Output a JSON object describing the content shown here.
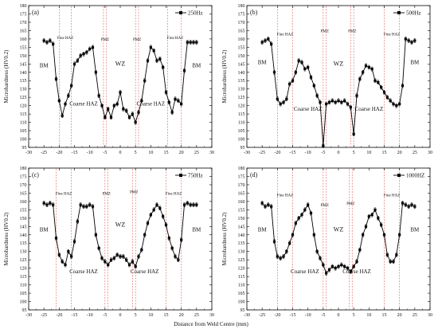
{
  "chart_data": [
    {
      "type": "line",
      "panel_label": "(a)",
      "legend": "250Hz",
      "ylabel": "Microhardness (HV0.2)",
      "xlabel": "",
      "xlim": [
        -30,
        30
      ],
      "ylim": [
        95,
        180
      ],
      "xticks": [
        "-30",
        "-25",
        "-20",
        "-15",
        "-10",
        "-5",
        "0",
        "5",
        "10",
        "15",
        "20",
        "25",
        "30"
      ],
      "yticks": [
        "95",
        "100",
        "105",
        "110",
        "115",
        "120",
        "125",
        "130",
        "135",
        "140",
        "145",
        "150",
        "155",
        "160",
        "165",
        "170",
        "175",
        "180"
      ],
      "zone_lines": [
        -20,
        -16,
        -5.5,
        -4.5,
        5,
        6,
        15.5,
        20
      ],
      "annotations": [
        {
          "text": "Fine HAZ",
          "x": -18,
          "y": 160
        },
        {
          "text": "PMZ",
          "x": -5,
          "y": 159
        },
        {
          "text": "PMZ",
          "x": 5.5,
          "y": 159
        },
        {
          "text": "Fine HAZ",
          "x": 18,
          "y": 160
        },
        {
          "text": "BM",
          "x": -25,
          "y": 143
        },
        {
          "text": "WZ",
          "x": 0,
          "y": 144
        },
        {
          "text": "BM",
          "x": 25,
          "y": 143
        },
        {
          "text": "Coarse HAZ",
          "x": -12,
          "y": 120
        },
        {
          "text": "Coarse HAZ",
          "x": 10,
          "y": 120
        }
      ],
      "x": [
        -25,
        -24,
        -23,
        -22,
        -21,
        -20,
        -19,
        -18,
        -17,
        -16,
        -15,
        -14,
        -13,
        -12,
        -11,
        -10,
        -9,
        -8,
        -7,
        -6,
        -5,
        -4,
        -3,
        -2,
        -1,
        0,
        1,
        2,
        3,
        4,
        5,
        6,
        7,
        8,
        9,
        10,
        11,
        12,
        13,
        14,
        15,
        16,
        17,
        18,
        19,
        20,
        21,
        22,
        23,
        24,
        25
      ],
      "values": [
        159,
        158,
        159,
        157,
        136,
        123,
        114,
        121,
        126,
        132,
        145,
        147,
        150,
        151,
        152,
        154,
        155,
        140,
        126,
        120,
        113,
        118,
        113,
        120,
        121,
        128,
        118,
        117,
        113,
        115,
        110,
        116,
        123,
        135,
        147,
        155,
        153,
        147,
        148,
        143,
        128,
        122,
        116,
        124,
        123,
        121,
        141,
        158,
        158,
        158,
        158
      ]
    },
    {
      "type": "line",
      "panel_label": "(b)",
      "legend": "500Hz",
      "ylabel": "Microhardness (HV0.2)",
      "xlabel": "",
      "xlim": [
        -30,
        30
      ],
      "ylim": [
        95,
        180
      ],
      "xticks": [
        "-30",
        "-25",
        "-20",
        "-15",
        "-10",
        "-5",
        "0",
        "5",
        "10",
        "15",
        "20",
        "25",
        "30"
      ],
      "yticks": [
        "95",
        "100",
        "105",
        "110",
        "115",
        "120",
        "125",
        "130",
        "135",
        "140",
        "145",
        "150",
        "155",
        "160",
        "165",
        "170",
        "175",
        "180"
      ],
      "zone_lines": [
        -20,
        -15,
        -5,
        -4,
        4,
        5,
        15,
        20
      ],
      "annotations": [
        {
          "text": "Fine HAZ",
          "x": -17.5,
          "y": 162
        },
        {
          "text": "PMZ",
          "x": -4.5,
          "y": 164
        },
        {
          "text": "PMZ",
          "x": 4.5,
          "y": 164
        },
        {
          "text": "Fine HAZ",
          "x": 17.5,
          "y": 162
        },
        {
          "text": "BM",
          "x": -25,
          "y": 145
        },
        {
          "text": "WZ",
          "x": 0,
          "y": 144
        },
        {
          "text": "BM",
          "x": 25,
          "y": 145
        },
        {
          "text": "Coarse HAZ",
          "x": -10,
          "y": 117
        },
        {
          "text": "Coarse HAZ",
          "x": 10,
          "y": 117
        }
      ],
      "x": [
        -25,
        -24,
        -23,
        -22,
        -21,
        -20,
        -19,
        -18,
        -17,
        -16,
        -15,
        -14,
        -13,
        -12,
        -11,
        -10,
        -9,
        -8,
        -7,
        -6,
        -5,
        -4,
        -3,
        -2,
        -1,
        0,
        1,
        2,
        3,
        4,
        5,
        6,
        7,
        8,
        9,
        10,
        11,
        12,
        13,
        14,
        15,
        16,
        17,
        18,
        19,
        20,
        21,
        22,
        23,
        24,
        25
      ],
      "values": [
        158,
        159,
        160,
        157,
        140,
        124,
        121,
        122,
        124,
        133,
        135,
        140,
        147,
        146,
        142,
        143,
        137,
        132,
        126,
        122,
        96,
        121,
        122,
        123,
        122,
        123,
        122,
        123,
        121,
        119,
        103,
        126,
        136,
        140,
        144,
        143,
        142,
        135,
        134,
        131,
        128,
        125,
        123,
        121,
        120,
        121,
        132,
        160,
        159,
        158,
        159
      ]
    },
    {
      "type": "line",
      "panel_label": "(c)",
      "legend": "750Hz",
      "ylabel": "Microhardness (HV0.2)",
      "xlabel": "",
      "xlim": [
        -30,
        30
      ],
      "ylim": [
        95,
        180
      ],
      "xticks": [
        "-30",
        "-25",
        "-20",
        "-15",
        "-10",
        "-5",
        "0",
        "5",
        "10",
        "15",
        "20",
        "25",
        "30"
      ],
      "yticks": [
        "95",
        "100",
        "105",
        "110",
        "115",
        "120",
        "125",
        "130",
        "135",
        "140",
        "145",
        "150",
        "155",
        "160",
        "165",
        "170",
        "175",
        "180"
      ],
      "zone_lines": [
        -21,
        -16,
        -5,
        -4,
        4,
        5,
        15,
        20
      ],
      "annotations": [
        {
          "text": "Fine HAZ",
          "x": -18.5,
          "y": 164
        },
        {
          "text": "PMZ",
          "x": -4.5,
          "y": 164
        },
        {
          "text": "PMZ",
          "x": 4.5,
          "y": 165
        },
        {
          "text": "Fine HAZ",
          "x": 17.5,
          "y": 164
        },
        {
          "text": "BM",
          "x": -25,
          "y": 142
        },
        {
          "text": "WZ",
          "x": 0,
          "y": 145
        },
        {
          "text": "BM",
          "x": 25,
          "y": 142
        },
        {
          "text": "Coarse HAZ",
          "x": -12,
          "y": 117
        },
        {
          "text": "Coarse HAZ",
          "x": 8,
          "y": 117
        }
      ],
      "x": [
        -25,
        -24,
        -23,
        -22,
        -21,
        -20,
        -19,
        -18,
        -17,
        -16,
        -15,
        -14,
        -13,
        -12,
        -11,
        -10,
        -9,
        -8,
        -7,
        -6,
        -5,
        -4,
        -3,
        -2,
        -1,
        0,
        1,
        2,
        3,
        4,
        5,
        6,
        7,
        8,
        9,
        10,
        11,
        12,
        13,
        14,
        15,
        16,
        17,
        18,
        19,
        20,
        21,
        22,
        23,
        24,
        25
      ],
      "values": [
        159,
        158,
        159,
        158,
        138,
        128,
        124,
        122,
        130,
        127,
        136,
        148,
        158,
        157,
        157,
        158,
        157,
        140,
        132,
        126,
        124,
        122,
        125,
        126,
        128,
        127,
        127,
        125,
        122,
        124,
        121,
        127,
        131,
        140,
        147,
        152,
        155,
        158,
        156,
        151,
        146,
        138,
        132,
        127,
        125,
        137,
        158,
        159,
        158,
        158,
        158
      ]
    },
    {
      "type": "line",
      "panel_label": "(d)",
      "legend": "1000HZ",
      "ylabel": "Microhardness (HV0.2)",
      "xlabel": "Distance from Weld Centre (mm)",
      "xlim": [
        -30,
        30
      ],
      "ylim": [
        95,
        180
      ],
      "xticks": [
        "-30",
        "-25",
        "-20",
        "-15",
        "-10",
        "-5",
        "0",
        "5",
        "10",
        "15",
        "20",
        "25",
        "30"
      ],
      "yticks": [
        "95",
        "100",
        "105",
        "110",
        "115",
        "120",
        "125",
        "130",
        "135",
        "140",
        "145",
        "150",
        "155",
        "160",
        "165",
        "170",
        "175",
        "180"
      ],
      "zone_lines": [
        -20,
        -15,
        -5,
        -4,
        3.5,
        4.5,
        15,
        20
      ],
      "annotations": [
        {
          "text": "Fine HAZ",
          "x": -17.5,
          "y": 163
        },
        {
          "text": "PMZ",
          "x": -4.5,
          "y": 157
        },
        {
          "text": "PMZ",
          "x": 4,
          "y": 158
        },
        {
          "text": "Fine HAZ",
          "x": 17.5,
          "y": 163
        },
        {
          "text": "BM",
          "x": -25,
          "y": 142
        },
        {
          "text": "WZ",
          "x": 0,
          "y": 142
        },
        {
          "text": "BM",
          "x": 25,
          "y": 142
        },
        {
          "text": "Coarse HAZ",
          "x": -11,
          "y": 117
        },
        {
          "text": "Coarse HAZ",
          "x": 6,
          "y": 117
        }
      ],
      "x": [
        -25,
        -24,
        -23,
        -22,
        -21,
        -20,
        -19,
        -18,
        -17,
        -16,
        -15,
        -14,
        -13,
        -12,
        -11,
        -10,
        -9,
        -8,
        -7,
        -6,
        -5,
        -4,
        -3,
        -2,
        -1,
        0,
        1,
        2,
        3,
        4,
        5,
        6,
        7,
        8,
        9,
        10,
        11,
        12,
        13,
        14,
        15,
        16,
        17,
        18,
        19,
        20,
        21,
        22,
        23,
        24,
        25
      ],
      "values": [
        159,
        157,
        158,
        157,
        136,
        127,
        126,
        127,
        130,
        135,
        140,
        147,
        150,
        152,
        155,
        158,
        153,
        140,
        130,
        126,
        122,
        117,
        119,
        121,
        120,
        121,
        122,
        121,
        120,
        118,
        121,
        124,
        131,
        140,
        145,
        151,
        152,
        155,
        150,
        146,
        140,
        128,
        124,
        124,
        128,
        140,
        159,
        158,
        157,
        158,
        157
      ]
    }
  ]
}
